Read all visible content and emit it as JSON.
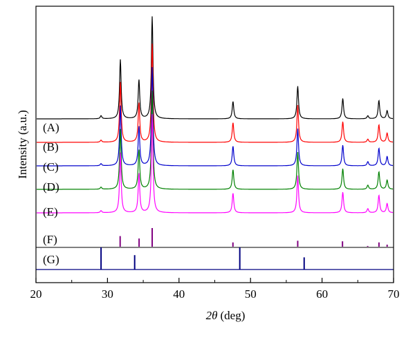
{
  "chart_data": {
    "type": "line",
    "title": "",
    "xlabel_var": "2θ",
    "xlabel_unit": "(deg)",
    "ylabel": "Intensity (a.u.)",
    "xlim": [
      20,
      70
    ],
    "x_ticks": [
      20,
      30,
      40,
      50,
      60,
      70
    ],
    "grid": false,
    "legend": "none",
    "series": [
      {
        "name": "(A)",
        "color": "#000000",
        "peaks": [
          [
            29.1,
            0.03
          ],
          [
            31.8,
            0.58
          ],
          [
            34.4,
            0.38
          ],
          [
            36.25,
            1.0
          ],
          [
            47.55,
            0.17
          ],
          [
            56.6,
            0.32
          ],
          [
            62.9,
            0.2
          ],
          [
            66.4,
            0.03
          ],
          [
            67.95,
            0.18
          ],
          [
            69.1,
            0.08
          ]
        ]
      },
      {
        "name": "(B)",
        "color": "#ff0000",
        "peaks": [
          [
            29.1,
            0.02
          ],
          [
            31.8,
            0.58
          ],
          [
            34.4,
            0.38
          ],
          [
            36.25,
            0.95
          ],
          [
            47.55,
            0.19
          ],
          [
            56.6,
            0.36
          ],
          [
            62.9,
            0.2
          ],
          [
            66.4,
            0.03
          ],
          [
            67.95,
            0.17
          ],
          [
            69.1,
            0.09
          ]
        ]
      },
      {
        "name": "(C)",
        "color": "#0000cc",
        "peaks": [
          [
            29.1,
            0.02
          ],
          [
            31.8,
            0.58
          ],
          [
            34.4,
            0.38
          ],
          [
            36.25,
            0.95
          ],
          [
            47.55,
            0.19
          ],
          [
            56.6,
            0.36
          ],
          [
            62.9,
            0.2
          ],
          [
            66.4,
            0.04
          ],
          [
            67.95,
            0.17
          ],
          [
            69.1,
            0.09
          ]
        ]
      },
      {
        "name": "(D)",
        "color": "#008000",
        "peaks": [
          [
            29.1,
            0.02
          ],
          [
            31.8,
            0.58
          ],
          [
            34.4,
            0.38
          ],
          [
            36.25,
            0.95
          ],
          [
            47.55,
            0.19
          ],
          [
            56.6,
            0.36
          ],
          [
            62.9,
            0.2
          ],
          [
            66.4,
            0.04
          ],
          [
            67.95,
            0.17
          ],
          [
            69.1,
            0.09
          ]
        ]
      },
      {
        "name": "(E)",
        "color": "#ff00ff",
        "peaks": [
          [
            29.1,
            0.02
          ],
          [
            31.8,
            0.58
          ],
          [
            34.4,
            0.38
          ],
          [
            36.25,
            0.95
          ],
          [
            47.55,
            0.19
          ],
          [
            56.6,
            0.36
          ],
          [
            62.9,
            0.2
          ],
          [
            66.4,
            0.04
          ],
          [
            67.95,
            0.17
          ],
          [
            69.1,
            0.09
          ]
        ]
      }
    ],
    "reference_patterns": [
      {
        "name": "(F)",
        "color": "#800080",
        "lines": [
          [
            31.77,
            0.57
          ],
          [
            34.42,
            0.44
          ],
          [
            36.25,
            1.0
          ],
          [
            47.54,
            0.23
          ],
          [
            56.6,
            0.32
          ],
          [
            62.86,
            0.29
          ],
          [
            66.38,
            0.04
          ],
          [
            67.96,
            0.23
          ],
          [
            69.1,
            0.11
          ]
        ]
      },
      {
        "name": "(G)",
        "color": "#000080",
        "lines": [
          [
            29.1,
            1.0
          ],
          [
            33.8,
            0.65
          ],
          [
            48.5,
            1.0
          ],
          [
            57.5,
            0.55
          ]
        ]
      }
    ]
  }
}
